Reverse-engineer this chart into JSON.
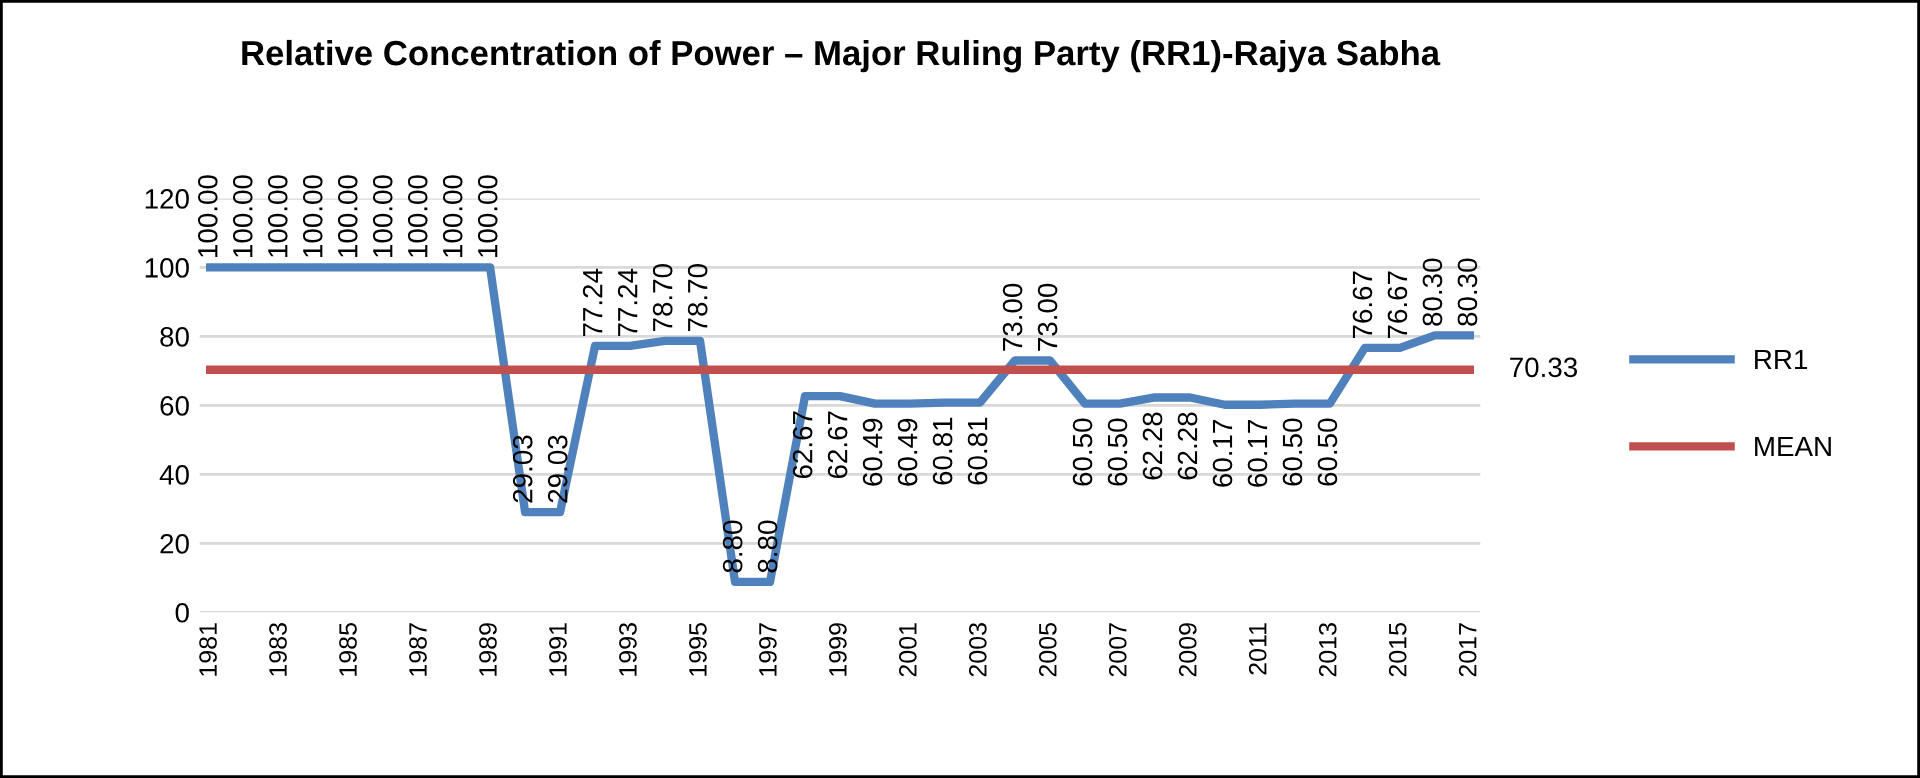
{
  "chart_data": {
    "type": "line",
    "title": "Relative Concentration of Power – Major Ruling Party (RR1)-Rajya Sabha",
    "categories": [
      "1981",
      null,
      "1983",
      null,
      "1985",
      null,
      "1987",
      null,
      "1989",
      null,
      "1991",
      null,
      "1993",
      null,
      "1995",
      null,
      "1997",
      null,
      "1999",
      null,
      "2001",
      null,
      "2003",
      null,
      "2005",
      null,
      "2007",
      null,
      "2009",
      null,
      "2011",
      null,
      "2013",
      null,
      "2015",
      null,
      "2017"
    ],
    "series": [
      {
        "name": "RR1",
        "color": "#4f81bd",
        "values": [
          100,
          100,
          100,
          100,
          100,
          100,
          100,
          100,
          100,
          29.03,
          29.03,
          77.24,
          77.24,
          78.7,
          78.7,
          8.8,
          8.8,
          62.67,
          62.67,
          60.49,
          60.49,
          60.81,
          60.81,
          73.0,
          73.0,
          60.5,
          60.5,
          62.28,
          62.28,
          60.17,
          60.17,
          60.5,
          60.5,
          76.67,
          76.67,
          80.3,
          80.3
        ],
        "value_labels": [
          "100.00",
          "100.00",
          "100.00",
          "100.00",
          "100.00",
          "100.00",
          "100.00",
          "100.00",
          "100.00",
          "29.03",
          "29.03",
          "77.24",
          "77.24",
          "78.70",
          "78.70",
          "8.80",
          "8.80",
          "62.67",
          "62.67",
          "60.49",
          "60.49",
          "60.81",
          "60.81",
          "73.00",
          "73.00",
          "60.50",
          "60.50",
          "62.28",
          "62.28",
          "60.17",
          "60.17",
          "60.50",
          "60.50",
          "76.67",
          "76.67",
          "80.30",
          "80.30"
        ]
      },
      {
        "name": "MEAN",
        "color": "#c0504d",
        "values": [
          70.33,
          70.33,
          70.33,
          70.33,
          70.33,
          70.33,
          70.33,
          70.33,
          70.33,
          70.33,
          70.33,
          70.33,
          70.33,
          70.33,
          70.33,
          70.33,
          70.33,
          70.33,
          70.33,
          70.33,
          70.33,
          70.33,
          70.33,
          70.33,
          70.33,
          70.33,
          70.33,
          70.33,
          70.33,
          70.33,
          70.33,
          70.33,
          70.33,
          70.33,
          70.33,
          70.33,
          70.33
        ],
        "value_labels": [
          null,
          null,
          null,
          null,
          null,
          null,
          null,
          null,
          null,
          null,
          null,
          null,
          null,
          null,
          null,
          null,
          null,
          null,
          null,
          null,
          null,
          null,
          null,
          null,
          null,
          null,
          null,
          null,
          null,
          null,
          null,
          null,
          null,
          null,
          null,
          null,
          "70.33"
        ]
      }
    ],
    "ylim": [
      0,
      120
    ],
    "yticks": [
      0,
      20,
      40,
      60,
      80,
      100,
      120
    ],
    "grid": "y",
    "legend": "right",
    "marker": "none",
    "line_style": "solid"
  }
}
